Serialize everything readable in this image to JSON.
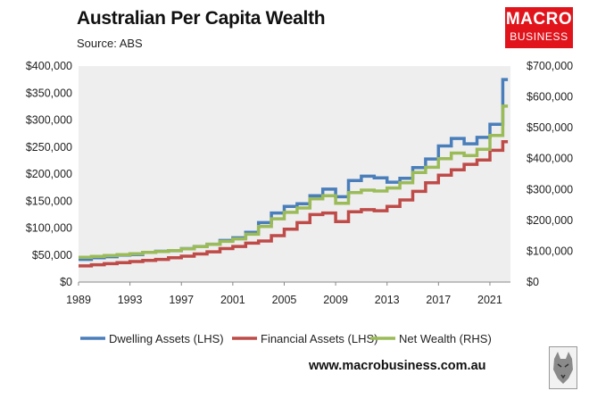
{
  "header": {
    "title": "Australian Per Capita Wealth",
    "subtitle": "Source: ABS"
  },
  "logo": {
    "line1": "MACRO",
    "line2": "BUSINESS",
    "color": "#e1141c",
    "icon": "macro-business-logo"
  },
  "footer": {
    "website": "www.macrobusiness.com.au",
    "badge_icon": "wolf-badge-icon"
  },
  "chart_data": {
    "type": "line",
    "grid": false,
    "legend_position": "bottom",
    "x_ticks": [
      "1989",
      "1993",
      "1997",
      "2001",
      "2005",
      "2009",
      "2013",
      "2017",
      "2021"
    ],
    "xlim": [
      1989,
      2022.6
    ],
    "y_left": {
      "lim": [
        0,
        400000
      ],
      "ticks": [
        "$0",
        "$50,000",
        "$100,000",
        "$150,000",
        "$200,000",
        "$250,000",
        "$300,000",
        "$350,000",
        "$400,000"
      ]
    },
    "y_right": {
      "lim": [
        0,
        700000
      ],
      "ticks": [
        "$0",
        "$100,000",
        "$200,000",
        "$300,000",
        "$400,000",
        "$500,000",
        "$600,000",
        "$700,000"
      ]
    },
    "series": [
      {
        "name": "Dwelling Assets (LHS)",
        "axis": "left",
        "color": "#4a7ebb",
        "x": [
          1989,
          1990,
          1991,
          1992,
          1993,
          1994,
          1995,
          1996,
          1997,
          1998,
          1999,
          2000,
          2001,
          2002,
          2003,
          2004,
          2005,
          2006,
          2007,
          2008,
          2009,
          2010,
          2011,
          2012,
          2013,
          2014,
          2015,
          2016,
          2017,
          2018,
          2019,
          2020,
          2021,
          2022
        ],
        "values": [
          42000,
          45000,
          47000,
          50000,
          51000,
          55000,
          57000,
          58000,
          62000,
          66000,
          70000,
          77000,
          82000,
          92000,
          110000,
          128000,
          140000,
          145000,
          160000,
          172000,
          158000,
          188000,
          196000,
          193000,
          185000,
          192000,
          212000,
          228000,
          252000,
          266000,
          256000,
          268000,
          292000,
          375000
        ]
      },
      {
        "name": "Financial Assets (LHS)",
        "axis": "left",
        "color": "#be4b48",
        "x": [
          1989,
          1990,
          1991,
          1992,
          1993,
          1994,
          1995,
          1996,
          1997,
          1998,
          1999,
          2000,
          2001,
          2002,
          2003,
          2004,
          2005,
          2006,
          2007,
          2008,
          2009,
          2010,
          2011,
          2012,
          2013,
          2014,
          2015,
          2016,
          2017,
          2018,
          2019,
          2020,
          2021,
          2022
        ],
        "values": [
          30000,
          32000,
          34000,
          36000,
          38000,
          40000,
          42000,
          45000,
          48000,
          52000,
          56000,
          62000,
          66000,
          72000,
          76000,
          86000,
          98000,
          110000,
          125000,
          128000,
          112000,
          130000,
          134000,
          132000,
          140000,
          152000,
          168000,
          184000,
          198000,
          208000,
          218000,
          226000,
          244000,
          260000
        ]
      },
      {
        "name": "Net Wealth (RHS)",
        "axis": "right",
        "color": "#9bbb59",
        "x": [
          1989,
          1990,
          1991,
          1992,
          1993,
          1994,
          1995,
          1996,
          1997,
          1998,
          1999,
          2000,
          2001,
          2002,
          2003,
          2004,
          2005,
          2006,
          2007,
          2008,
          2009,
          2010,
          2011,
          2012,
          2013,
          2014,
          2015,
          2016,
          2017,
          2018,
          2019,
          2020,
          2021,
          2022
        ],
        "values": [
          80000,
          83000,
          86000,
          89000,
          92000,
          96000,
          99000,
          102000,
          108000,
          115000,
          122000,
          132000,
          140000,
          155000,
          180000,
          205000,
          226000,
          240000,
          270000,
          280000,
          255000,
          290000,
          298000,
          295000,
          305000,
          322000,
          355000,
          372000,
          400000,
          418000,
          410000,
          430000,
          475000,
          570000
        ]
      }
    ]
  }
}
